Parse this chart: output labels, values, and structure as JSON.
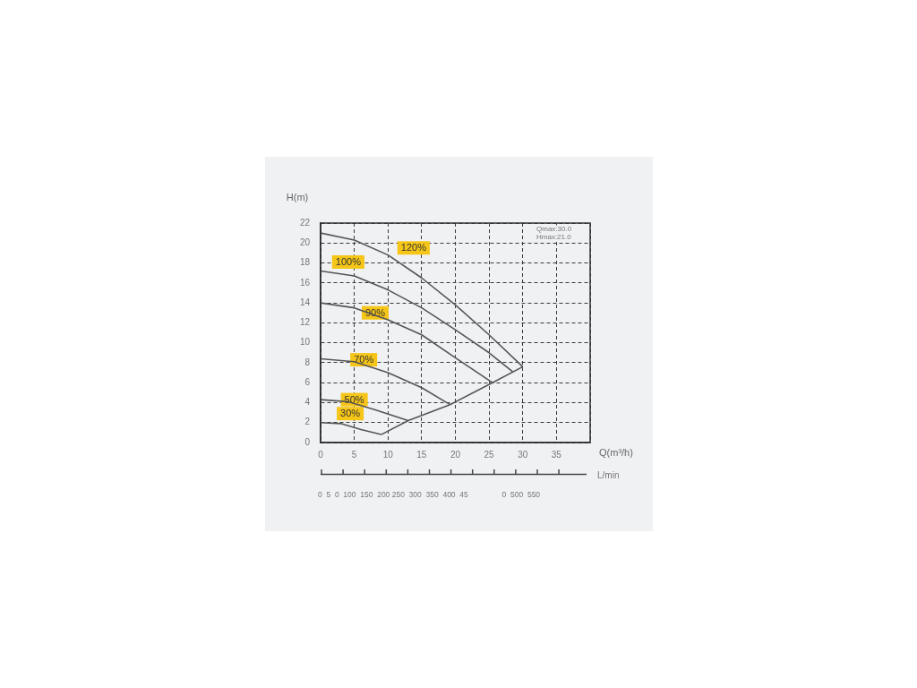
{
  "chart_data": {
    "type": "line",
    "xlabel": "Q(m³/h)",
    "ylabel": "H(m)",
    "xlim": [
      0,
      40
    ],
    "xticks": [
      0,
      5,
      10,
      15,
      20,
      25,
      30,
      35,
      {
        "value": 40,
        "label": null
      }
    ],
    "ylim": [
      0,
      22
    ],
    "yticks": [
      0,
      2,
      4,
      6,
      8,
      10,
      12,
      14,
      16,
      18,
      20,
      22
    ],
    "grid": true,
    "legend": false,
    "line_style": "solid",
    "series": [
      {
        "color": "#555555",
        "x": [
          0,
          5,
          10,
          15,
          20,
          25,
          30
        ],
        "values": [
          21,
          20.3,
          18.8,
          16.5,
          13.8,
          10.8,
          7.6
        ]
      },
      {
        "color": "#555555",
        "x": [
          0,
          5,
          10,
          15,
          20,
          25,
          28.5
        ],
        "values": [
          17.2,
          16.7,
          15.3,
          13.5,
          11.3,
          9,
          7.1
        ]
      },
      {
        "color": "#555555",
        "x": [
          0,
          5,
          10,
          15,
          20,
          25.5
        ],
        "values": [
          14,
          13.5,
          12.3,
          10.8,
          8.5,
          6
        ]
      },
      {
        "color": "#555555",
        "x": [
          0,
          5,
          10,
          15,
          19.2
        ],
        "values": [
          8.4,
          8.1,
          7,
          5.5,
          3.8
        ]
      },
      {
        "color": "#555555",
        "x": [
          0,
          4,
          8,
          13
        ],
        "values": [
          4.3,
          4.1,
          3.3,
          2.2
        ]
      },
      {
        "color": "#555555",
        "x": [
          0,
          3,
          6,
          9
        ],
        "values": [
          2,
          1.9,
          1.3,
          0.8
        ]
      },
      {
        "color": "#555555",
        "x": [
          9,
          13,
          19.2,
          25.5,
          30
        ],
        "values": [
          0.8,
          2.2,
          3.8,
          6,
          7.6
        ]
      }
    ],
    "annotations": [
      {
        "text": "120%",
        "x": 13.8,
        "y": 19.5
      },
      {
        "text": "100%",
        "x": 4.1,
        "y": 18.1
      },
      {
        "text": "90%",
        "x": 8.1,
        "y": 13
      },
      {
        "text": "70%",
        "x": 6.4,
        "y": 8.3
      },
      {
        "text": "50%",
        "x": 5,
        "y": 4.3
      },
      {
        "text": "30%",
        "x": 4.4,
        "y": 2.9
      },
      "Qmax:30.0",
      "Hmax:21.0",
      "L/min",
      "0  5  0  100  150  200 250  300  350  400  45                0  500  550"
    ]
  }
}
